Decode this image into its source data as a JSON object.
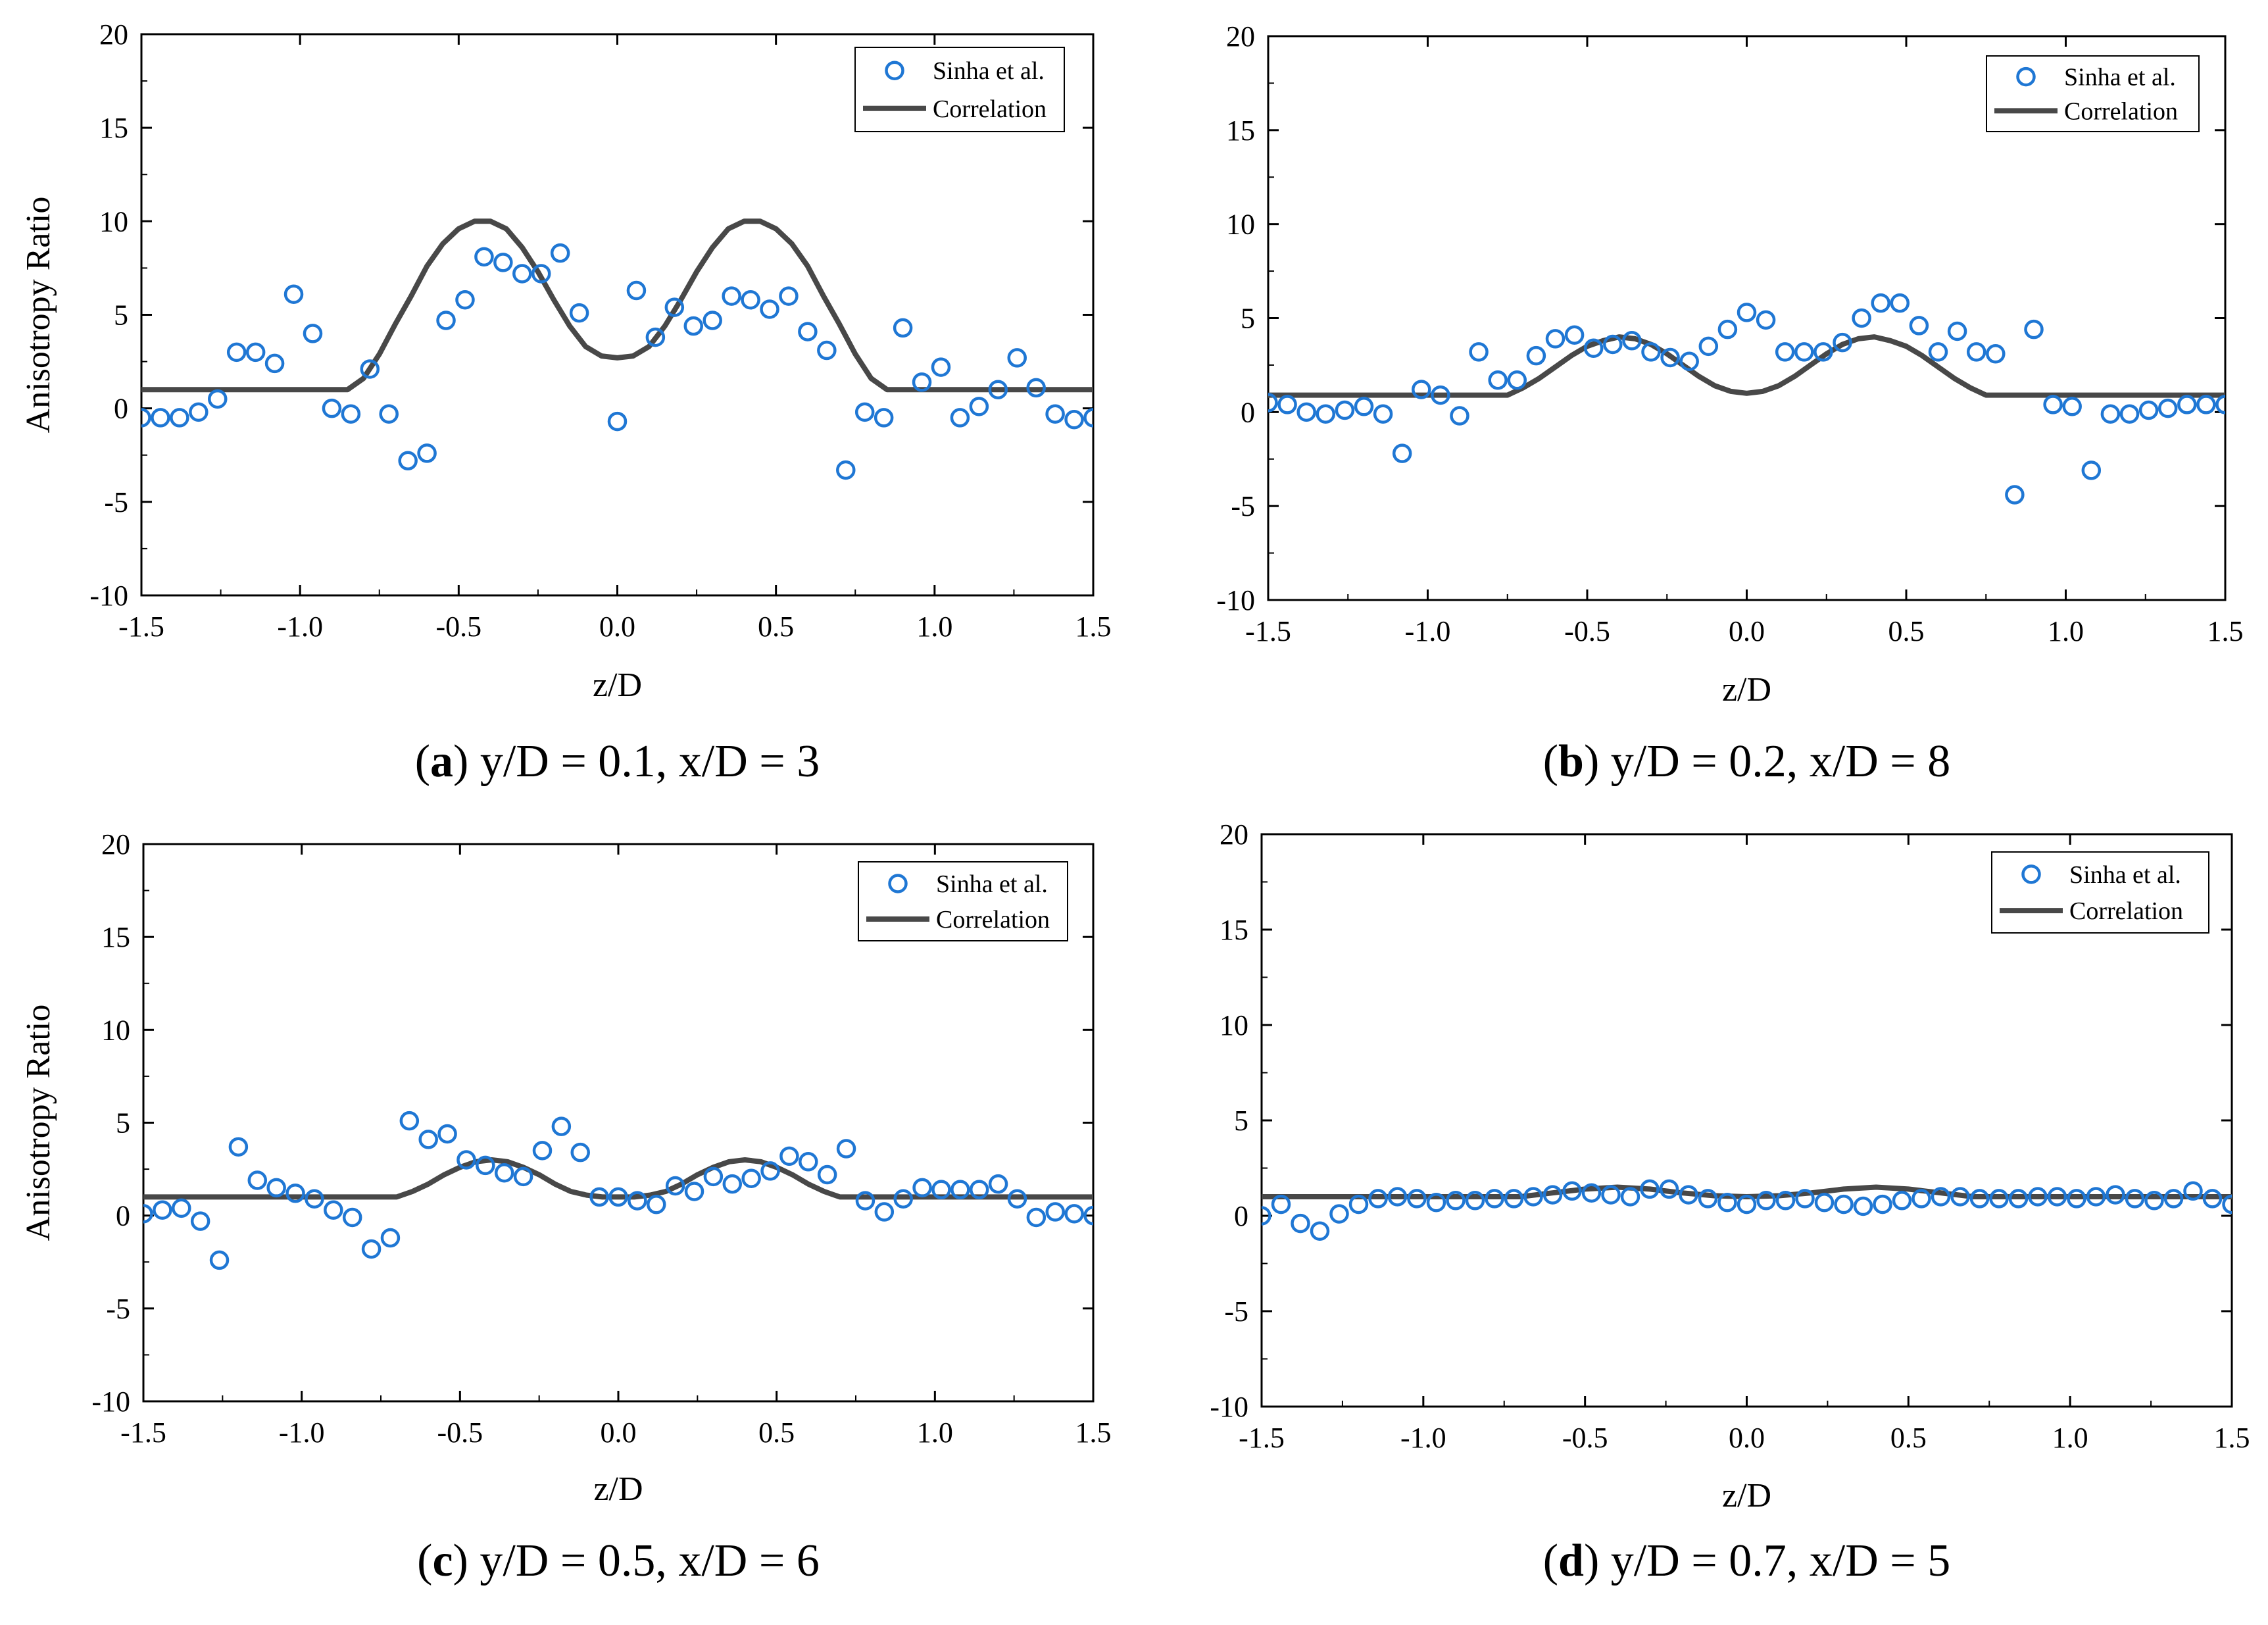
{
  "chart_data": [
    {
      "type": "scatter",
      "panel": "a",
      "caption_letter": "a",
      "caption_text": "y/D = 0.1, x/D = 3",
      "xlabel": "z/D",
      "ylabel": "Anisotropy Ratio",
      "xlim": [
        -1.5,
        1.5
      ],
      "ylim": [
        -10,
        20
      ],
      "xticks": [
        -1.5,
        -1.0,
        -0.5,
        0.0,
        0.5,
        1.0,
        1.5
      ],
      "xtick_labels": [
        "-1.5",
        "-1.0",
        "-0.5",
        "0.0",
        "0.5",
        "1.0",
        "1.5"
      ],
      "yticks": [
        -10,
        -5,
        0,
        5,
        10,
        15,
        20
      ],
      "ytick_labels": [
        "-10",
        "-5",
        "0",
        "5",
        "10",
        "15",
        "20"
      ],
      "legend_position": "top-right",
      "series": [
        {
          "name": "Sinha et al.",
          "kind": "markers",
          "color": "#1f77d4",
          "x": [
            -1.5,
            -1.44,
            -1.38,
            -1.32,
            -1.26,
            -1.2,
            -1.14,
            -1.08,
            -1.02,
            -0.96,
            -0.9,
            -0.84,
            -0.78,
            -0.72,
            -0.66,
            -0.6,
            -0.54,
            -0.48,
            -0.42,
            -0.36,
            -0.3,
            -0.24,
            -0.18,
            -0.12,
            0.0,
            0.06,
            0.12,
            0.18,
            0.24,
            0.3,
            0.36,
            0.42,
            0.48,
            0.54,
            0.6,
            0.66,
            0.72,
            0.78,
            0.84,
            0.9,
            0.96,
            1.02,
            1.08,
            1.14,
            1.2,
            1.26,
            1.32,
            1.38,
            1.44,
            1.5
          ],
          "y": [
            -0.5,
            -0.5,
            -0.5,
            -0.2,
            0.5,
            3.0,
            3.0,
            2.4,
            6.1,
            4.0,
            0.0,
            -0.3,
            2.1,
            -0.3,
            -2.8,
            -2.4,
            4.7,
            5.8,
            8.1,
            7.8,
            7.2,
            7.2,
            8.3,
            5.1,
            -0.7,
            6.3,
            3.8,
            5.4,
            4.4,
            4.7,
            6.0,
            5.8,
            5.3,
            6.0,
            4.1,
            3.1,
            -3.3,
            -0.2,
            -0.5,
            4.3,
            1.4,
            2.2,
            -0.5,
            0.1,
            1.0,
            2.7,
            1.1,
            -0.3,
            -0.6,
            -0.5
          ]
        },
        {
          "name": "Correlation",
          "kind": "line",
          "color": "#484848",
          "x": [
            -1.5,
            -0.85,
            -0.8,
            -0.75,
            -0.7,
            -0.65,
            -0.6,
            -0.55,
            -0.5,
            -0.45,
            -0.4,
            -0.35,
            -0.3,
            -0.25,
            -0.2,
            -0.15,
            -0.1,
            -0.05,
            0.0,
            0.05,
            0.1,
            0.15,
            0.2,
            0.25,
            0.3,
            0.35,
            0.4,
            0.45,
            0.5,
            0.55,
            0.6,
            0.65,
            0.7,
            0.75,
            0.8,
            0.85,
            1.5
          ],
          "y": [
            1.0,
            1.0,
            1.6,
            2.9,
            4.5,
            6.0,
            7.6,
            8.8,
            9.6,
            10.0,
            10.0,
            9.6,
            8.6,
            7.3,
            5.8,
            4.4,
            3.3,
            2.8,
            2.7,
            2.8,
            3.3,
            4.4,
            5.8,
            7.3,
            8.6,
            9.6,
            10.0,
            10.0,
            9.6,
            8.8,
            7.6,
            6.0,
            4.5,
            2.9,
            1.6,
            1.0,
            1.0
          ]
        }
      ]
    },
    {
      "type": "scatter",
      "panel": "b",
      "caption_letter": "b",
      "caption_text": "y/D = 0.2, x/D = 8",
      "xlabel": "z/D",
      "ylabel": "",
      "xlim": [
        -1.5,
        1.5
      ],
      "ylim": [
        -10,
        20
      ],
      "xticks": [
        -1.5,
        -1.0,
        -0.5,
        0.0,
        0.5,
        1.0,
        1.5
      ],
      "xtick_labels": [
        "-1.5",
        "-1.0",
        "-0.5",
        "0.0",
        "0.5",
        "1.0",
        "1.5"
      ],
      "yticks": [
        -10,
        -5,
        0,
        5,
        10,
        15,
        20
      ],
      "ytick_labels": [
        "-10",
        "-5",
        "0",
        "5",
        "10",
        "15",
        "20"
      ],
      "legend_position": "top-right",
      "series": [
        {
          "name": "Sinha et al.",
          "kind": "markers",
          "color": "#1f77d4",
          "x": [
            -1.5,
            -1.44,
            -1.38,
            -1.32,
            -1.26,
            -1.2,
            -1.14,
            -1.08,
            -1.02,
            -0.96,
            -0.9,
            -0.84,
            -0.78,
            -0.72,
            -0.66,
            -0.6,
            -0.54,
            -0.48,
            -0.42,
            -0.36,
            -0.3,
            -0.24,
            -0.18,
            -0.12,
            -0.06,
            0.0,
            0.06,
            0.12,
            0.18,
            0.24,
            0.3,
            0.36,
            0.42,
            0.48,
            0.54,
            0.6,
            0.66,
            0.72,
            0.78,
            0.84,
            0.9,
            0.96,
            1.02,
            1.08,
            1.14,
            1.2,
            1.26,
            1.32,
            1.38,
            1.44,
            1.5
          ],
          "y": [
            0.5,
            0.4,
            0.0,
            -0.1,
            0.1,
            0.3,
            -0.1,
            -2.2,
            1.2,
            0.9,
            -0.2,
            3.2,
            1.7,
            1.7,
            3.0,
            3.9,
            4.1,
            3.4,
            3.6,
            3.8,
            3.2,
            2.9,
            2.7,
            3.5,
            4.4,
            5.3,
            4.9,
            3.2,
            3.2,
            3.2,
            3.7,
            5.0,
            5.8,
            5.8,
            4.6,
            3.2,
            4.3,
            3.2,
            3.1,
            -4.4,
            4.4,
            0.4,
            0.3,
            -3.1,
            -0.1,
            -0.1,
            0.1,
            0.2,
            0.4,
            0.4,
            0.4
          ]
        },
        {
          "name": "Correlation",
          "kind": "line",
          "color": "#484848",
          "x": [
            -1.5,
            -0.75,
            -0.7,
            -0.65,
            -0.6,
            -0.55,
            -0.5,
            -0.45,
            -0.4,
            -0.35,
            -0.3,
            -0.25,
            -0.2,
            -0.15,
            -0.1,
            -0.05,
            0.0,
            0.05,
            0.1,
            0.15,
            0.2,
            0.25,
            0.3,
            0.35,
            0.4,
            0.45,
            0.5,
            0.55,
            0.6,
            0.65,
            0.7,
            0.75,
            1.5
          ],
          "y": [
            0.9,
            0.9,
            1.3,
            1.8,
            2.4,
            3.0,
            3.5,
            3.8,
            4.0,
            3.9,
            3.6,
            3.1,
            2.5,
            1.9,
            1.4,
            1.1,
            1.0,
            1.1,
            1.4,
            1.9,
            2.5,
            3.1,
            3.6,
            3.9,
            4.0,
            3.8,
            3.5,
            3.0,
            2.4,
            1.8,
            1.3,
            0.9,
            0.9
          ]
        }
      ]
    },
    {
      "type": "scatter",
      "panel": "c",
      "caption_letter": "c",
      "caption_text": "y/D = 0.5, x/D = 6",
      "xlabel": "z/D",
      "ylabel": "Anisotropy Ratio",
      "xlim": [
        -1.5,
        1.5
      ],
      "ylim": [
        -10,
        20
      ],
      "xticks": [
        -1.5,
        -1.0,
        -0.5,
        0.0,
        0.5,
        1.0,
        1.5
      ],
      "xtick_labels": [
        "-1.5",
        "-1.0",
        "-0.5",
        "0.0",
        "0.5",
        "1.0",
        "1.5"
      ],
      "yticks": [
        -10,
        -5,
        0,
        5,
        10,
        15,
        20
      ],
      "ytick_labels": [
        "-10",
        "-5",
        "0",
        "5",
        "10",
        "15",
        "20"
      ],
      "legend_position": "top-right",
      "series": [
        {
          "name": "Sinha et al.",
          "kind": "markers",
          "color": "#1f77d4",
          "x": [
            -1.5,
            -1.44,
            -1.38,
            -1.32,
            -1.26,
            -1.2,
            -1.14,
            -1.08,
            -1.02,
            -0.96,
            -0.9,
            -0.84,
            -0.78,
            -0.72,
            -0.66,
            -0.6,
            -0.54,
            -0.48,
            -0.42,
            -0.36,
            -0.3,
            -0.24,
            -0.18,
            -0.12,
            -0.06,
            0.0,
            0.06,
            0.12,
            0.18,
            0.24,
            0.3,
            0.36,
            0.42,
            0.48,
            0.54,
            0.6,
            0.66,
            0.72,
            0.78,
            0.84,
            0.9,
            0.96,
            1.02,
            1.08,
            1.14,
            1.2,
            1.26,
            1.32,
            1.38,
            1.44,
            1.5
          ],
          "y": [
            0.1,
            0.3,
            0.4,
            -0.3,
            -2.4,
            3.7,
            1.9,
            1.5,
            1.2,
            0.9,
            0.3,
            -0.1,
            -1.8,
            -1.2,
            5.1,
            4.1,
            4.4,
            3.0,
            2.7,
            2.3,
            2.1,
            3.5,
            4.8,
            3.4,
            1.0,
            1.0,
            0.8,
            0.6,
            1.6,
            1.3,
            2.1,
            1.7,
            2.0,
            2.4,
            3.2,
            2.9,
            2.2,
            3.6,
            0.8,
            0.2,
            0.9,
            1.5,
            1.4,
            1.4,
            1.4,
            1.7,
            0.9,
            -0.1,
            0.2,
            0.1,
            0.0
          ]
        },
        {
          "name": "Correlation",
          "kind": "line",
          "color": "#484848",
          "x": [
            -1.5,
            -0.7,
            -0.65,
            -0.6,
            -0.55,
            -0.5,
            -0.45,
            -0.4,
            -0.35,
            -0.3,
            -0.25,
            -0.2,
            -0.15,
            -0.1,
            -0.05,
            0.0,
            0.05,
            0.1,
            0.15,
            0.2,
            0.25,
            0.3,
            0.35,
            0.4,
            0.45,
            0.5,
            0.55,
            0.6,
            0.65,
            0.7,
            1.5
          ],
          "y": [
            1.0,
            1.0,
            1.3,
            1.7,
            2.2,
            2.6,
            2.9,
            3.0,
            2.9,
            2.6,
            2.2,
            1.7,
            1.3,
            1.1,
            1.0,
            1.0,
            1.0,
            1.1,
            1.3,
            1.7,
            2.2,
            2.6,
            2.9,
            3.0,
            2.9,
            2.6,
            2.2,
            1.7,
            1.3,
            1.0,
            1.0
          ]
        }
      ]
    },
    {
      "type": "scatter",
      "panel": "d",
      "caption_letter": "d",
      "caption_text": "y/D = 0.7, x/D = 5",
      "xlabel": "z/D",
      "ylabel": "",
      "xlim": [
        -1.5,
        1.5
      ],
      "ylim": [
        -10,
        20
      ],
      "xticks": [
        -1.5,
        -1.0,
        -0.5,
        0.0,
        0.5,
        1.0,
        1.5
      ],
      "xtick_labels": [
        "-1.5",
        "-1.0",
        "-0.5",
        "0.0",
        "0.5",
        "1.0",
        "1.5"
      ],
      "yticks": [
        -10,
        -5,
        0,
        5,
        10,
        15,
        20
      ],
      "ytick_labels": [
        "-10",
        "-5",
        "0",
        "5",
        "10",
        "15",
        "20"
      ],
      "legend_position": "top-right",
      "series": [
        {
          "name": "Sinha et al.",
          "kind": "markers",
          "color": "#1f77d4",
          "x": [
            -1.5,
            -1.44,
            -1.38,
            -1.32,
            -1.26,
            -1.2,
            -1.14,
            -1.08,
            -1.02,
            -0.96,
            -0.9,
            -0.84,
            -0.78,
            -0.72,
            -0.66,
            -0.6,
            -0.54,
            -0.48,
            -0.42,
            -0.36,
            -0.3,
            -0.24,
            -0.18,
            -0.12,
            -0.06,
            0.0,
            0.06,
            0.12,
            0.18,
            0.24,
            0.3,
            0.36,
            0.42,
            0.48,
            0.54,
            0.6,
            0.66,
            0.72,
            0.78,
            0.84,
            0.9,
            0.96,
            1.02,
            1.08,
            1.14,
            1.2,
            1.26,
            1.32,
            1.38,
            1.44,
            1.5
          ],
          "y": [
            0.0,
            0.6,
            -0.4,
            -0.8,
            0.1,
            0.6,
            0.9,
            1.0,
            0.9,
            0.7,
            0.8,
            0.8,
            0.9,
            0.9,
            1.0,
            1.1,
            1.3,
            1.2,
            1.1,
            1.0,
            1.4,
            1.4,
            1.1,
            0.9,
            0.7,
            0.6,
            0.8,
            0.8,
            0.9,
            0.7,
            0.6,
            0.5,
            0.6,
            0.8,
            0.9,
            1.0,
            1.0,
            0.9,
            0.9,
            0.9,
            1.0,
            1.0,
            0.9,
            1.0,
            1.1,
            0.9,
            0.8,
            0.9,
            1.3,
            0.9,
            0.6
          ]
        },
        {
          "name": "Correlation",
          "kind": "line",
          "color": "#484848",
          "x": [
            -1.5,
            -0.7,
            -0.6,
            -0.5,
            -0.4,
            -0.3,
            -0.2,
            -0.1,
            0.0,
            0.1,
            0.2,
            0.3,
            0.4,
            0.5,
            0.6,
            0.7,
            1.5
          ],
          "y": [
            1.0,
            1.0,
            1.2,
            1.4,
            1.5,
            1.4,
            1.2,
            1.05,
            1.0,
            1.05,
            1.2,
            1.4,
            1.5,
            1.4,
            1.2,
            1.0,
            1.0
          ]
        }
      ]
    }
  ]
}
